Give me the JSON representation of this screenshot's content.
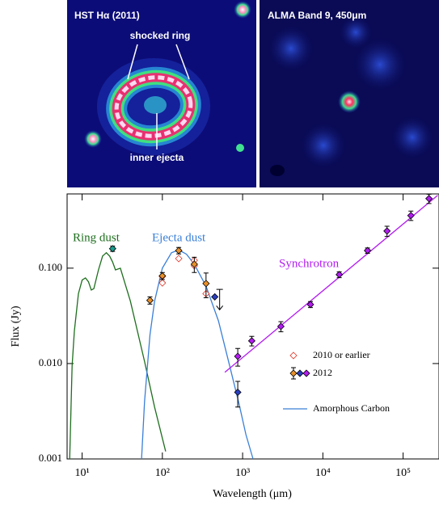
{
  "panels": [
    {
      "title": "HST Hα (2011)",
      "annotations": [
        "shocked ring",
        "inner ejecta"
      ]
    },
    {
      "title": "ALMA Band 9, 450μm"
    }
  ],
  "chart_data": {
    "type": "scatter",
    "xlabel": "Wavelength (μm)",
    "ylabel": "Flux (Jy)",
    "xscale": "log",
    "yscale": "log",
    "grid": false,
    "xlim": [
      6.5,
      280000
    ],
    "ylim": [
      0.001,
      0.6
    ],
    "xticks": [
      {
        "value": 10,
        "label": "10¹"
      },
      {
        "value": 100,
        "label": "10²"
      },
      {
        "value": 1000,
        "label": "10³"
      },
      {
        "value": 10000,
        "label": "10⁴"
      },
      {
        "value": 100000,
        "label": "10⁵"
      }
    ],
    "yticks": [
      0.001,
      {
        "value": 0.01,
        "label": "0.010"
      },
      {
        "value": 0.1,
        "label": "0.100"
      }
    ],
    "series": [
      {
        "style": "line",
        "label": "Ring dust",
        "color": "#1e6e1e",
        "x": [
          7,
          7.5,
          8,
          9,
          10,
          11,
          12,
          13,
          14,
          16,
          18,
          20,
          22,
          24,
          26,
          30,
          40,
          60,
          80,
          110
        ],
        "values": [
          0.001,
          0.0095,
          0.022,
          0.054,
          0.075,
          0.079,
          0.072,
          0.059,
          0.061,
          0.096,
          0.134,
          0.145,
          0.134,
          0.116,
          0.096,
          0.1,
          0.045,
          0.0105,
          0.0035,
          0.0012
        ]
      },
      {
        "style": "line",
        "name": "Amorphous Carbon",
        "label": "Ejecta dust",
        "color": "#3a7fd8",
        "x": [
          55,
          60,
          70,
          80,
          100,
          130,
          160,
          200,
          250,
          350,
          500,
          700,
          900,
          1100,
          1350
        ],
        "values": [
          0.001,
          0.004,
          0.02,
          0.045,
          0.1,
          0.145,
          0.155,
          0.14,
          0.11,
          0.065,
          0.028,
          0.009,
          0.0038,
          0.0018,
          0.001
        ]
      },
      {
        "style": "line",
        "label": "Synchrotron",
        "color": "#b21cf0",
        "x": [
          600,
          270000
        ],
        "values": [
          0.0081,
          0.58
        ]
      },
      {
        "style": "open-diamond",
        "name": "2010 or earlier",
        "color": "#e03020",
        "x": [
          100,
          100,
          160,
          250,
          250,
          350
        ],
        "values": [
          0.082,
          0.07,
          0.126,
          0.121,
          0.106,
          0.054
        ]
      },
      {
        "style": "diamond",
        "name": "2012",
        "legend_colors": [
          "#e8902a",
          "#2a3fc0",
          "#b21cf0"
        ],
        "x": [
          24,
          70,
          100,
          160,
          250,
          350,
          450,
          870,
          870,
          1300,
          3000,
          7000,
          16000,
          36000,
          63000,
          125000,
          210000
        ],
        "values": [
          0.16,
          0.046,
          0.083,
          0.153,
          0.11,
          0.069,
          0.05,
          0.005,
          0.0119,
          0.0173,
          0.0245,
          0.0416,
          0.0856,
          0.153,
          0.245,
          0.356,
          0.536
        ],
        "errors": [
          0.01,
          0.004,
          0.007,
          0.012,
          0.02,
          0.02,
          0.01,
          0.0015,
          0.0025,
          0.002,
          0.003,
          0.003,
          0.006,
          0.01,
          0.03,
          0.04,
          0.06
        ],
        "upper_limits": [
          false,
          false,
          false,
          false,
          false,
          false,
          true,
          false,
          false,
          false,
          false,
          false,
          false,
          false,
          false,
          false,
          false
        ],
        "point_colors": [
          "#1a9a8a",
          "#e8902a",
          "#e8902a",
          "#e8902a",
          "#e8902a",
          "#e8902a",
          "#2a3fc0",
          "#2a3fc0",
          "#b21cf0",
          "#b21cf0",
          "#b21cf0",
          "#b21cf0",
          "#b21cf0",
          "#b21cf0",
          "#b21cf0",
          "#b21cf0",
          "#b21cf0"
        ]
      }
    ]
  }
}
